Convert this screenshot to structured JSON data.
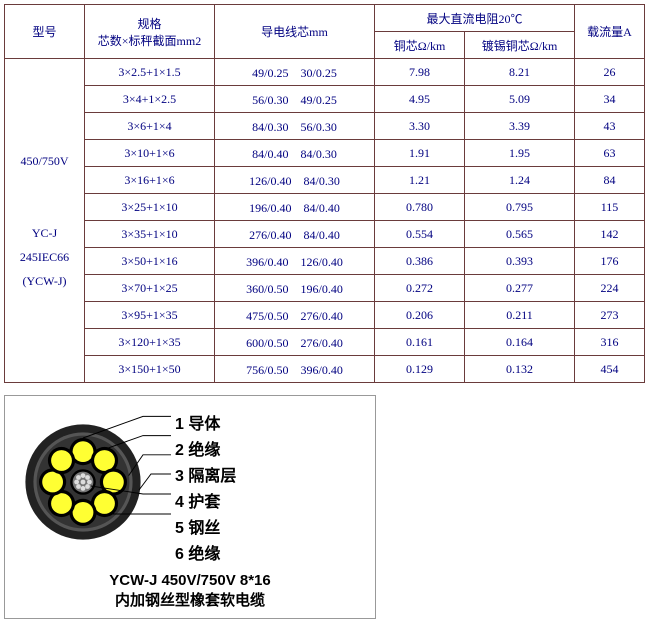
{
  "table": {
    "border_color": "#6a3b3b",
    "text_color": "#000080",
    "font_size": 12,
    "headers": {
      "model": "型号",
      "spec_top": "规格",
      "spec_bottom": "芯数×标秤截面mm2",
      "conductor": "导电线芯mm",
      "resistance_top": "最大直流电阻20℃",
      "r_cu": "铜芯Ω/km",
      "r_tin": "镀锡铜芯Ω/km",
      "current": "载流量A"
    },
    "model_labels": {
      "voltage": "450/750V",
      "type": "YC-J",
      "iec": "245IEC66",
      "alt": "(YCW-J)"
    },
    "rows": [
      {
        "spec": "3×2.5+1×1.5",
        "cond": "49/0.25　30/0.25",
        "rcu": "7.98",
        "rtin": "8.21",
        "curr": "26"
      },
      {
        "spec": "3×4+1×2.5",
        "cond": "56/0.30　49/0.25",
        "rcu": "4.95",
        "rtin": "5.09",
        "curr": "34"
      },
      {
        "spec": "3×6+1×4",
        "cond": "84/0.30　56/0.30",
        "rcu": "3.30",
        "rtin": "3.39",
        "curr": "43"
      },
      {
        "spec": "3×10+1×6",
        "cond": "84/0.40　84/0.30",
        "rcu": "1.91",
        "rtin": "1.95",
        "curr": "63"
      },
      {
        "spec": "3×16+1×6",
        "cond": "126/0.40　84/0.30",
        "rcu": "1.21",
        "rtin": "1.24",
        "curr": "84"
      },
      {
        "spec": "3×25+1×10",
        "cond": "196/0.40　84/0.40",
        "rcu": "0.780",
        "rtin": "0.795",
        "curr": "115"
      },
      {
        "spec": "3×35+1×10",
        "cond": "276/0.40　84/0.40",
        "rcu": "0.554",
        "rtin": "0.565",
        "curr": "142"
      },
      {
        "spec": "3×50+1×16",
        "cond": "396/0.40　126/0.40",
        "rcu": "0.386",
        "rtin": "0.393",
        "curr": "176"
      },
      {
        "spec": "3×70+1×25",
        "cond": "360/0.50　196/0.40",
        "rcu": "0.272",
        "rtin": "0.277",
        "curr": "224"
      },
      {
        "spec": "3×95+1×35",
        "cond": "475/0.50　276/0.40",
        "rcu": "0.206",
        "rtin": "0.211",
        "curr": "273"
      },
      {
        "spec": "3×120+1×35",
        "cond": "600/0.50　276/0.40",
        "rcu": "0.161",
        "rtin": "0.164",
        "curr": "316"
      },
      {
        "spec": "3×150+1×50",
        "cond": "756/0.50　396/0.40",
        "rcu": "0.129",
        "rtin": "0.132",
        "curr": "454"
      }
    ]
  },
  "diagram": {
    "legend": [
      "1 导体",
      "2 绝缘",
      "3 隔离层",
      "4 护套",
      "5 钢丝",
      "6 绝缘"
    ],
    "footer1": "YCW-J 450V/750V 8*16",
    "footer2": "内加钢丝型橡套软电缆",
    "colors": {
      "sheath": "#222",
      "inner": "#444",
      "core_ring": "#000",
      "core_fill": "#ffff33",
      "center_fill": "#777",
      "center_dots": "#ddd",
      "leader": "#000"
    }
  }
}
